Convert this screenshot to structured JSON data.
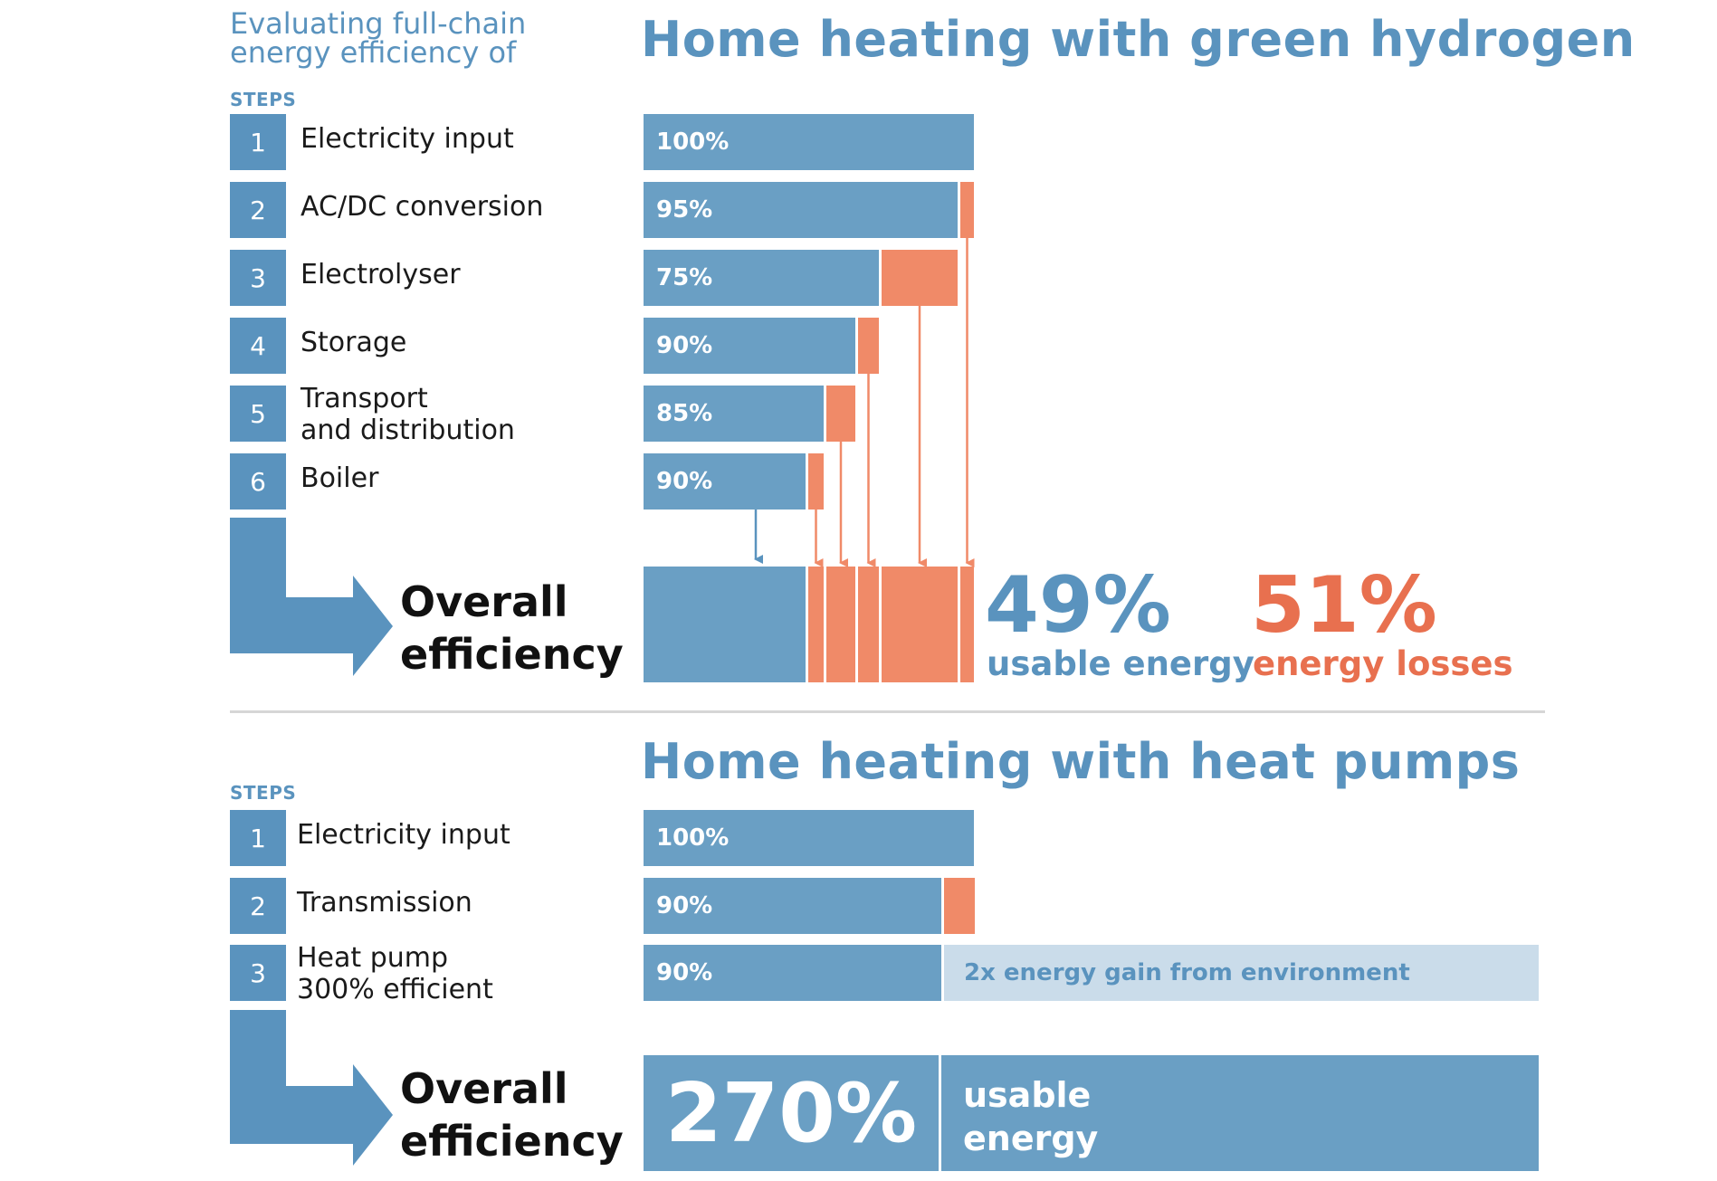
{
  "intro": "Evaluating full-chain energy efficiency of",
  "colors": {
    "blue": "#6a9fc4",
    "title_blue": "#5a93be",
    "orange": "#f08a68",
    "light_blue": "#cadcea",
    "loss_text": "#e8704f"
  },
  "hydrogen": {
    "title": "Home heating with green hydrogen",
    "steps_header": "STEPS",
    "steps": [
      {
        "num": "1",
        "label": "Electricity input",
        "value_label": "100%"
      },
      {
        "num": "2",
        "label": "AC/DC conversion",
        "value_label": "95%"
      },
      {
        "num": "3",
        "label": "Electrolyser",
        "value_label": "75%"
      },
      {
        "num": "4",
        "label": "Storage",
        "value_label": "90%"
      },
      {
        "num": "5",
        "label": "Transport\nand distribution",
        "value_label": "85%"
      },
      {
        "num": "6",
        "label": "Boiler",
        "value_label": "90%"
      }
    ],
    "overall_label": "Overall\nefficiency",
    "usable_pct": "49%",
    "usable_label": "usable energy",
    "loss_pct": "51%",
    "loss_label": "energy losses"
  },
  "heatpump": {
    "title": "Home heating with heat pumps",
    "steps_header": "STEPS",
    "steps": [
      {
        "num": "1",
        "label": "Electricity input",
        "value_label": "100%"
      },
      {
        "num": "2",
        "label": "Transmission",
        "value_label": "90%"
      },
      {
        "num": "3",
        "label": "Heat pump\n300% efficient",
        "value_label": "90%"
      }
    ],
    "env_gain_label": "2x energy gain from environment",
    "overall_label": "Overall\nefficiency",
    "total_pct": "270%",
    "total_label": "usable\nenergy"
  },
  "chart_data": [
    {
      "type": "bar",
      "title": "Home heating with green hydrogen",
      "categories": [
        "Electricity input",
        "AC/DC conversion",
        "Electrolyser",
        "Storage",
        "Transport and distribution",
        "Boiler"
      ],
      "step_efficiency_pct": [
        100,
        95,
        75,
        90,
        85,
        90
      ],
      "series": [
        {
          "name": "",
          "values": [
            100,
            95,
            71.25,
            64.1,
            54.5,
            49.1
          ]
        },
        {
          "name": "",
          "values": [
            0,
            5,
            23.75,
            7.1,
            9.6,
            5.4
          ]
        }
      ],
      "overall": {
        "usable_pct": 49,
        "losses_pct": 51
      }
    },
    {
      "type": "bar",
      "title": "Home heating with heat pumps",
      "categories": [
        "Electricity input",
        "Transmission",
        "Heat pump 300% efficient"
      ],
      "step_efficiency_pct": [
        100,
        90,
        90
      ],
      "series": [
        {
          "name": "",
          "values": [
            100,
            90,
            90
          ]
        },
        {
          "name": "",
          "values": [
            0,
            10,
            0
          ]
        },
        {
          "name": "",
          "values": [
            0,
            0,
            180
          ]
        }
      ],
      "overall": {
        "usable_pct": 270
      }
    }
  ]
}
